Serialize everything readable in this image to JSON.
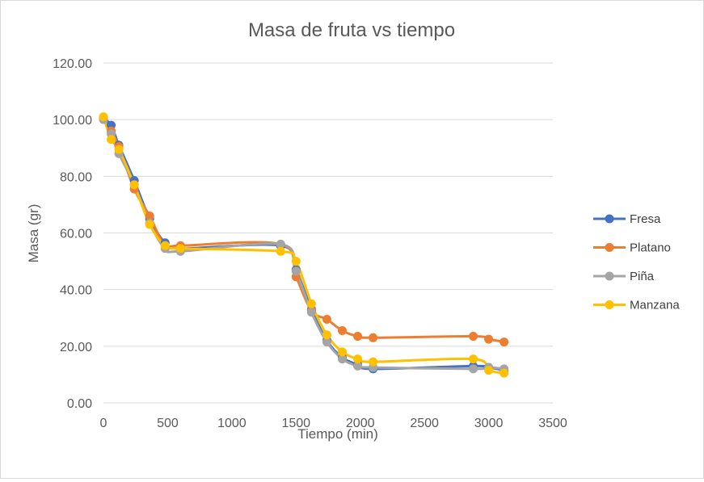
{
  "chart_data": {
    "type": "line",
    "title": "Masa de fruta vs tiempo",
    "xlabel": "Tiempo (min)",
    "ylabel": "Masa (gr)",
    "xlim": [
      0,
      3500
    ],
    "ylim": [
      0,
      120
    ],
    "x_ticks": [
      "0",
      "500",
      "1000",
      "1500",
      "2000",
      "2500",
      "3000",
      "3500"
    ],
    "y_ticks": [
      "0.00",
      "20.00",
      "40.00",
      "60.00",
      "80.00",
      "100.00",
      "120.00"
    ],
    "grid": "horizontal",
    "legend_position": "right",
    "smoothed": true,
    "series": [
      {
        "name": "Fresa",
        "color": "#4472C4",
        "points": [
          [
            0,
            100.5
          ],
          [
            60,
            98
          ],
          [
            120,
            91
          ],
          [
            240,
            78.5
          ],
          [
            360,
            65
          ],
          [
            480,
            56.5
          ],
          [
            600,
            54.5
          ],
          [
            1380,
            55.5
          ],
          [
            1500,
            47
          ],
          [
            1620,
            33
          ],
          [
            1740,
            22
          ],
          [
            1860,
            16
          ],
          [
            1980,
            13.5
          ],
          [
            2100,
            12
          ],
          [
            2880,
            13
          ],
          [
            3000,
            12.5
          ],
          [
            3120,
            11.5
          ]
        ]
      },
      {
        "name": "Platano",
        "color": "#ED7D31",
        "points": [
          [
            0,
            100.5
          ],
          [
            60,
            96
          ],
          [
            120,
            90.5
          ],
          [
            240,
            75.5
          ],
          [
            360,
            66
          ],
          [
            480,
            55.5
          ],
          [
            600,
            55.5
          ],
          [
            1380,
            56
          ],
          [
            1500,
            44.5
          ],
          [
            1620,
            32.5
          ],
          [
            1740,
            29.5
          ],
          [
            1860,
            25.5
          ],
          [
            1980,
            23.5
          ],
          [
            2100,
            23
          ],
          [
            2880,
            23.5
          ],
          [
            3000,
            22.5
          ],
          [
            3120,
            21.5
          ]
        ]
      },
      {
        "name": "Piña",
        "color": "#A5A5A5",
        "points": [
          [
            0,
            100
          ],
          [
            60,
            95
          ],
          [
            120,
            88
          ],
          [
            240,
            77
          ],
          [
            360,
            63.5
          ],
          [
            480,
            54.5
          ],
          [
            600,
            53.5
          ],
          [
            1380,
            56
          ],
          [
            1500,
            46.5
          ],
          [
            1620,
            32
          ],
          [
            1740,
            21.5
          ],
          [
            1860,
            15.5
          ],
          [
            1980,
            13
          ],
          [
            2100,
            12.5
          ],
          [
            2880,
            12
          ],
          [
            3000,
            12.5
          ],
          [
            3120,
            12
          ]
        ]
      },
      {
        "name": "Manzana",
        "color": "#FFC000",
        "points": [
          [
            0,
            101
          ],
          [
            60,
            93
          ],
          [
            120,
            89.5
          ],
          [
            240,
            77
          ],
          [
            360,
            63
          ],
          [
            480,
            55.5
          ],
          [
            600,
            54.5
          ],
          [
            1380,
            53.5
          ],
          [
            1500,
            50
          ],
          [
            1620,
            35
          ],
          [
            1740,
            24
          ],
          [
            1860,
            18
          ],
          [
            1980,
            15.5
          ],
          [
            2100,
            14.5
          ],
          [
            2880,
            15.5
          ],
          [
            3000,
            11.5
          ],
          [
            3120,
            10.5
          ]
        ]
      }
    ]
  }
}
